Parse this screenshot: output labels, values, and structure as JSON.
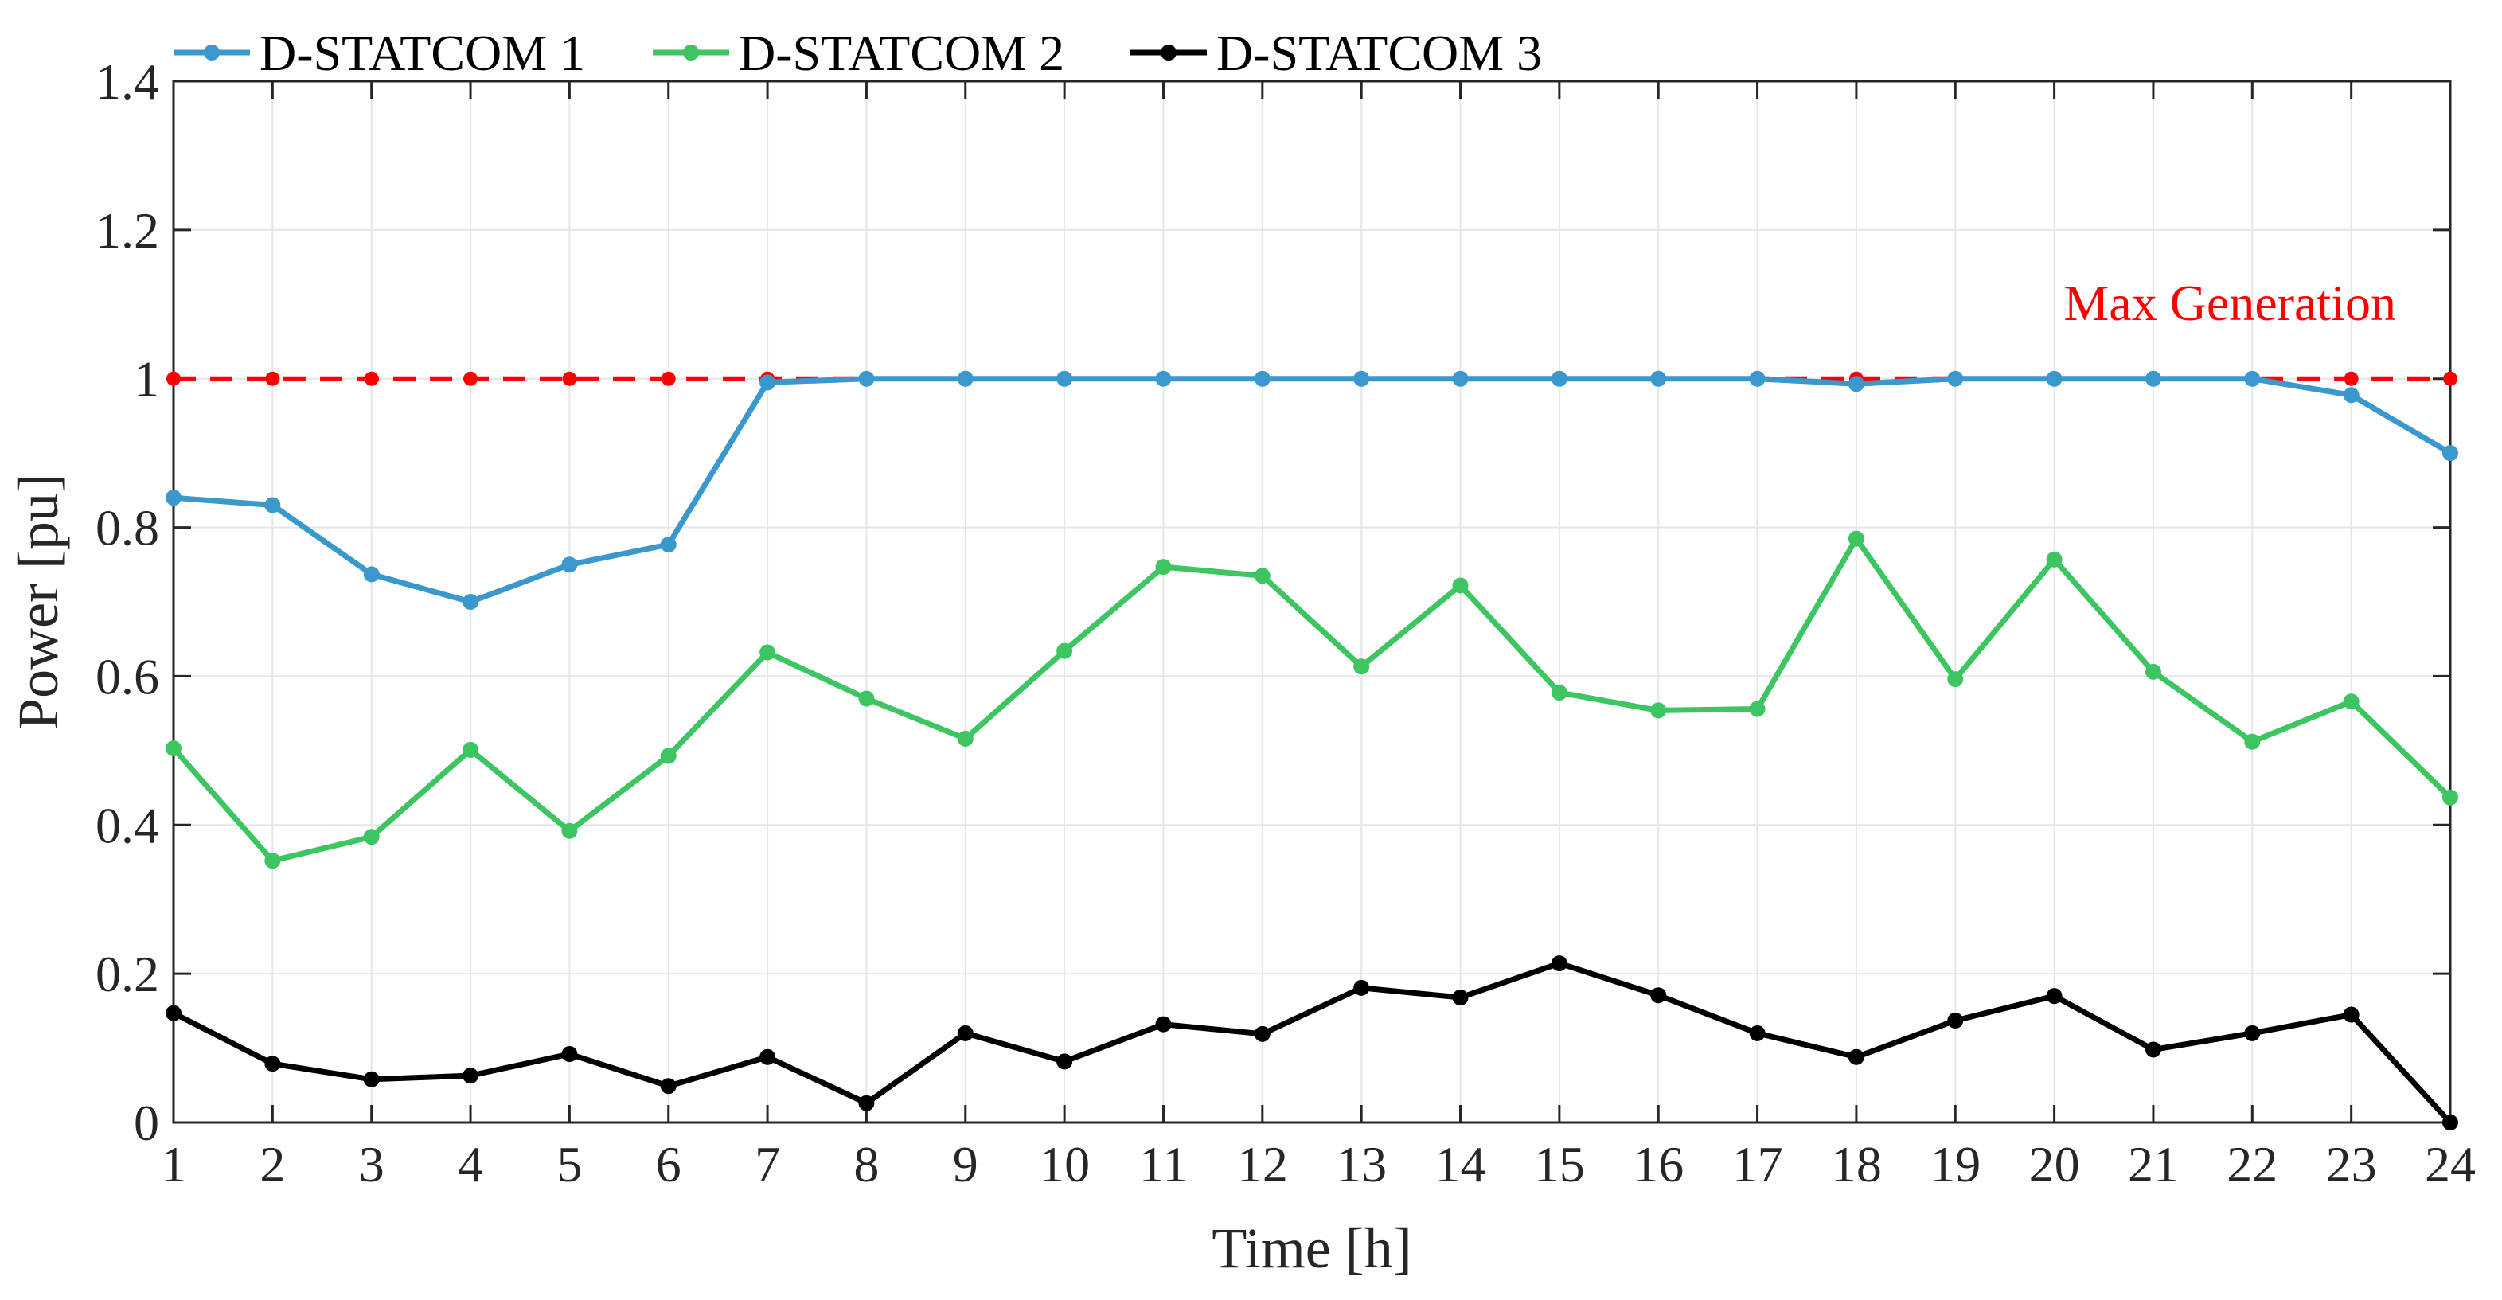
{
  "chart_data": {
    "type": "line",
    "xlabel": "Time [h]",
    "ylabel": "Power [pu]",
    "x": [
      1,
      2,
      3,
      4,
      5,
      6,
      7,
      8,
      9,
      10,
      11,
      12,
      13,
      14,
      15,
      16,
      17,
      18,
      19,
      20,
      21,
      22,
      23,
      24
    ],
    "xlim": [
      1,
      24
    ],
    "ylim": [
      0,
      1.4
    ],
    "yticks": [
      0,
      0.2,
      0.4,
      0.6,
      0.8,
      1,
      1.2,
      1.4
    ],
    "ytick_labels": [
      "0",
      "0.2",
      "0.4",
      "0.6",
      "0.8",
      "1",
      "1.2",
      "1.4"
    ],
    "xtick_labels": [
      "1",
      "2",
      "3",
      "4",
      "5",
      "6",
      "7",
      "8",
      "9",
      "10",
      "11",
      "12",
      "13",
      "14",
      "15",
      "16",
      "17",
      "18",
      "19",
      "20",
      "21",
      "22",
      "23",
      "24"
    ],
    "grid": true,
    "legend_position": "top-left, outside",
    "series": [
      {
        "name": "D-STATCOM 1",
        "color": "#3b98cc",
        "values": [
          0.84,
          0.83,
          0.737,
          0.7,
          0.75,
          0.777,
          0.995,
          1.0,
          1.0,
          1.0,
          1.0,
          1.0,
          1.0,
          1.0,
          1.0,
          1.0,
          1.0,
          0.993,
          1.0,
          1.0,
          1.0,
          1.0,
          0.978,
          0.9
        ]
      },
      {
        "name": "D-STATCOM 2",
        "color": "#3dc561",
        "values": [
          0.503,
          0.352,
          0.384,
          0.501,
          0.392,
          0.493,
          0.632,
          0.57,
          0.516,
          0.634,
          0.747,
          0.735,
          0.613,
          0.722,
          0.578,
          0.554,
          0.556,
          0.785,
          0.596,
          0.757,
          0.606,
          0.512,
          0.566,
          0.437
        ]
      },
      {
        "name": "D-STATCOM 3",
        "color": "#000000",
        "values": [
          0.147,
          0.079,
          0.058,
          0.063,
          0.092,
          0.049,
          0.088,
          0.026,
          0.12,
          0.082,
          0.132,
          0.119,
          0.181,
          0.168,
          0.214,
          0.171,
          0.12,
          0.088,
          0.137,
          0.17,
          0.098,
          0.12,
          0.145,
          0.0
        ]
      }
    ],
    "reference_line": {
      "value": 1.0,
      "color": "#ff0000",
      "style": "dashed",
      "annotation": "Max Generation"
    }
  }
}
